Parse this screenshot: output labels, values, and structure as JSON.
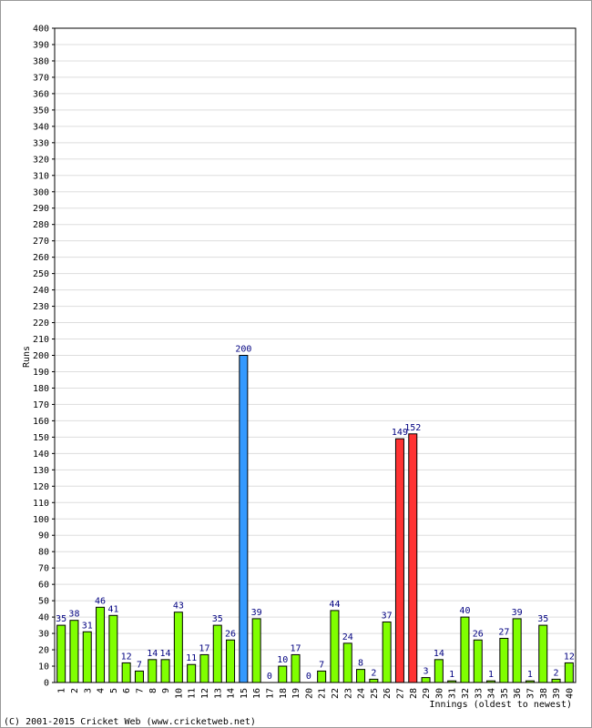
{
  "chart_data": {
    "type": "bar",
    "y_label": "Runs",
    "x_label": "Innings (oldest to newest)",
    "footer": "(C) 2001-2015 Cricket Web (www.cricketweb.net)",
    "categories": [
      "1",
      "2",
      "3",
      "4",
      "5",
      "6",
      "7",
      "8",
      "9",
      "10",
      "11",
      "12",
      "13",
      "14",
      "15",
      "16",
      "17",
      "18",
      "19",
      "20",
      "21",
      "22",
      "23",
      "24",
      "25",
      "26",
      "27",
      "28",
      "29",
      "30",
      "31",
      "32",
      "33",
      "34",
      "35",
      "36",
      "37",
      "38",
      "39",
      "40"
    ],
    "values": [
      35,
      38,
      31,
      46,
      41,
      12,
      7,
      14,
      14,
      43,
      11,
      17,
      35,
      26,
      200,
      39,
      0,
      10,
      17,
      0,
      7,
      44,
      24,
      8,
      2,
      37,
      149,
      152,
      3,
      14,
      1,
      40,
      26,
      1,
      27,
      39,
      1,
      35,
      2,
      12
    ],
    "colors": [
      "#80ff00",
      "#80ff00",
      "#80ff00",
      "#80ff00",
      "#80ff00",
      "#80ff00",
      "#80ff00",
      "#80ff00",
      "#80ff00",
      "#80ff00",
      "#80ff00",
      "#80ff00",
      "#80ff00",
      "#80ff00",
      "#3399ff",
      "#80ff00",
      "#80ff00",
      "#80ff00",
      "#80ff00",
      "#80ff00",
      "#80ff00",
      "#80ff00",
      "#80ff00",
      "#80ff00",
      "#80ff00",
      "#80ff00",
      "#ff3333",
      "#ff3333",
      "#80ff00",
      "#80ff00",
      "#80ff00",
      "#80ff00",
      "#80ff00",
      "#80ff00",
      "#80ff00",
      "#80ff00",
      "#80ff00",
      "#80ff00",
      "#80ff00",
      "#80ff00"
    ],
    "ylim": [
      0,
      400
    ],
    "yticks": [
      0,
      10,
      20,
      30,
      40,
      50,
      60,
      70,
      80,
      90,
      100,
      110,
      120,
      130,
      140,
      150,
      160,
      170,
      180,
      190,
      200,
      210,
      220,
      230,
      240,
      250,
      260,
      270,
      280,
      290,
      300,
      310,
      320,
      330,
      340,
      350,
      360,
      370,
      380,
      390,
      400
    ],
    "grid": true
  }
}
